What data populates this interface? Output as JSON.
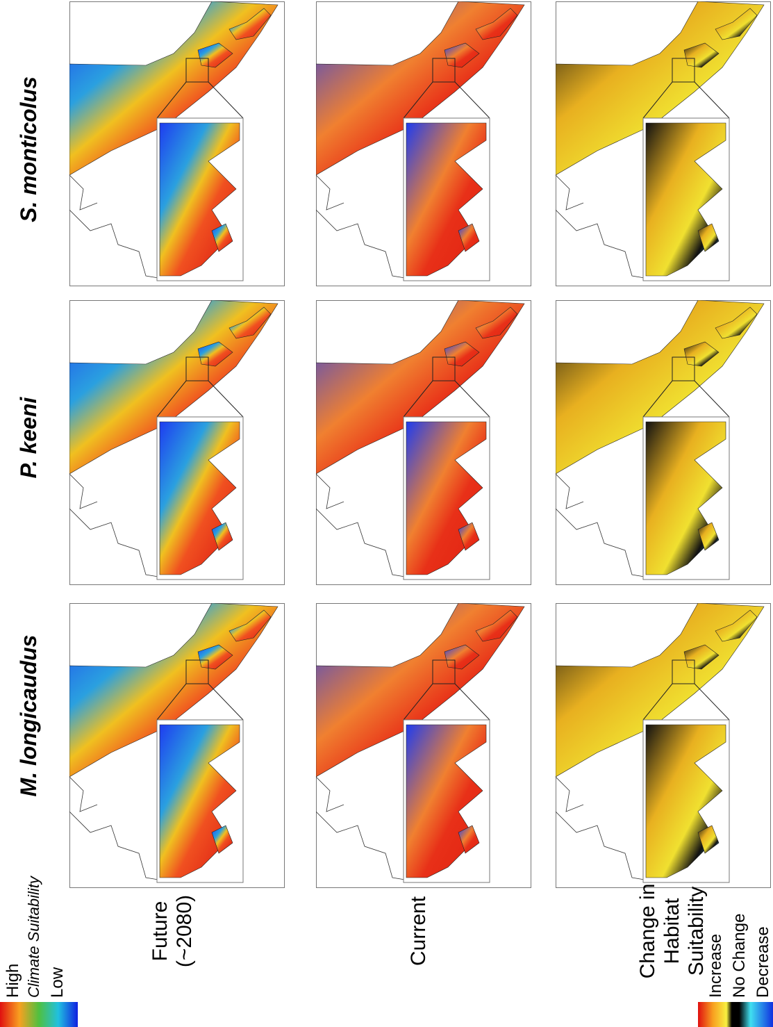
{
  "species": [
    "S. monticolus",
    "P. keeni",
    "M. longicaudus"
  ],
  "rows": [
    {
      "lines": [
        "Future",
        "(~2080)"
      ]
    },
    {
      "lines": [
        "Current"
      ]
    },
    {
      "lines": [
        "Change in",
        "Habitat",
        "Suitability"
      ]
    }
  ],
  "legend_climate": {
    "high": "High",
    "title": "Climate Suitability",
    "low": "Low"
  },
  "legend_change": {
    "increase": "Increase",
    "no_change": "No Change",
    "decrease": "Decrease"
  }
}
